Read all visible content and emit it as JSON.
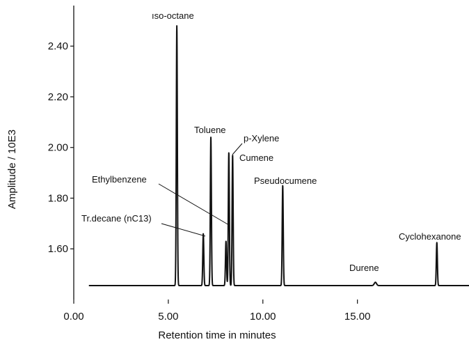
{
  "chart_data": {
    "type": "line",
    "xlabel": "Retention time in minutes",
    "ylabel": "Amplitude / 10E3",
    "xlim": [
      0,
      20.9
    ],
    "ylim": [
      1.4,
      2.56
    ],
    "baseline": 1.455,
    "trace_start_x": 0.8,
    "x_ticks": [
      0,
      5,
      10,
      15
    ],
    "x_tick_labels": [
      "0.00",
      "5.00",
      "10.00",
      "15.00"
    ],
    "y_ticks": [
      1.6,
      1.8,
      2.0,
      2.2,
      2.4
    ],
    "y_tick_labels": [
      "1.60",
      "1.80",
      "2.00",
      "2.20",
      "2.40"
    ],
    "grid": false,
    "series": [
      {
        "values": [
          {
            "x": 5.45,
            "y": 2.48,
            "label": "ıso-octane"
          },
          {
            "x": 6.85,
            "y": 1.66,
            "label": "Tr.decane (nC13)"
          },
          {
            "x": 7.25,
            "y": 2.04,
            "label": "Toluene"
          },
          {
            "x": 8.05,
            "y": 1.63,
            "label": "Ethylbenzene"
          },
          {
            "x": 8.2,
            "y": 1.98,
            "label": "p-Xylene"
          },
          {
            "x": 8.4,
            "y": 1.97,
            "label": "Cumene"
          },
          {
            "x": 11.05,
            "y": 1.85,
            "label": "Pseudocumene"
          },
          {
            "x": 15.95,
            "y": 1.468,
            "label": "Durene"
          },
          {
            "x": 19.2,
            "y": 1.625,
            "label": "Cyclohexanone"
          }
        ]
      }
    ]
  }
}
